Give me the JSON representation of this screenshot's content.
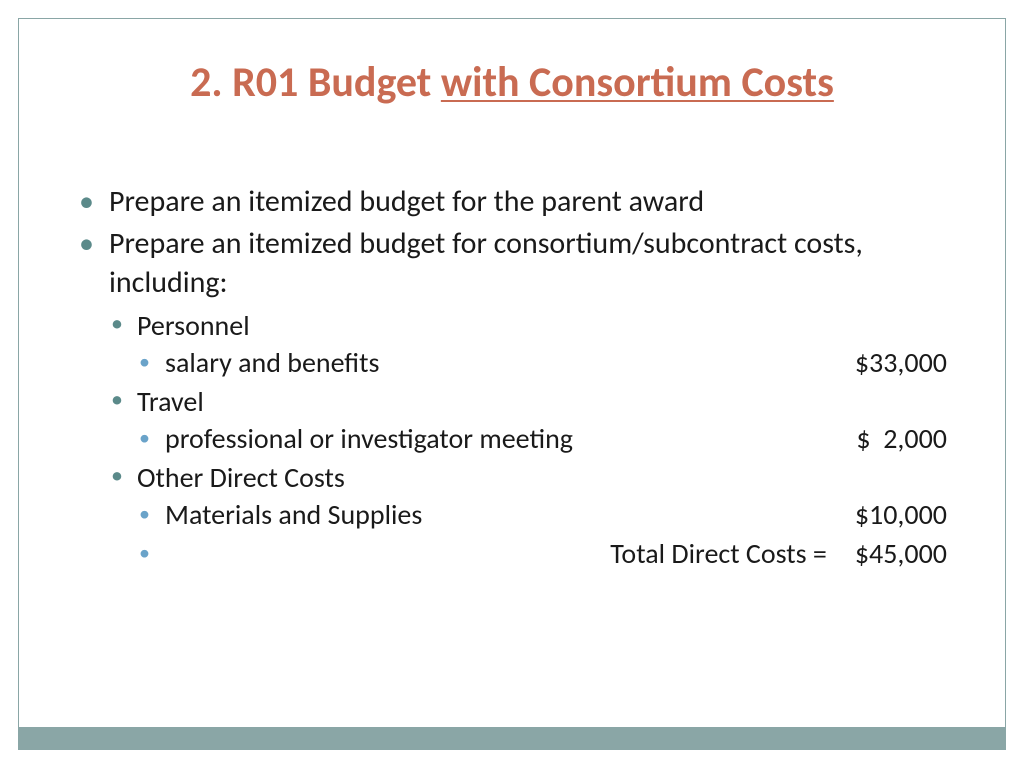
{
  "title": {
    "prefix": "2. R01 Budget ",
    "underlined": "with Consortium Costs"
  },
  "colors": {
    "title": "#c96b52",
    "bullet_main": "#5b8a8a",
    "bullet_sub": "#6aa3c9",
    "frame": "#8aa6a6",
    "bar": "#8aa6a6",
    "text": "#1a1a1a",
    "bg": "#ffffff"
  },
  "bullets": {
    "b1": "Prepare an itemized budget for the parent award",
    "b2": "Prepare an itemized budget for consortium/subcontract costs, including:",
    "personnel": {
      "label": "Personnel",
      "salary_label": "salary and benefits",
      "salary_amount": "$33,000"
    },
    "travel": {
      "label": "Travel",
      "meeting_label": "professional or investigator meeting",
      "meeting_amount": "$  2,000"
    },
    "other": {
      "label": "Other Direct Costs",
      "materials_label": "Materials and Supplies",
      "materials_amount": "$10,000",
      "total_label": "Total Direct Costs =",
      "total_amount": "$45,000"
    }
  }
}
